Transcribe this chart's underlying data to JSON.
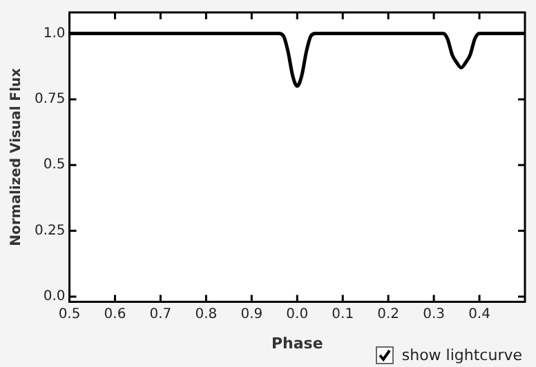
{
  "chart_data": {
    "type": "line",
    "xlabel": "Phase",
    "ylabel": "Normalized Visual Flux",
    "categories": [
      "0.5",
      null,
      null,
      null,
      null,
      null,
      null,
      null,
      null,
      null,
      "0.6",
      null,
      null,
      null,
      null,
      null,
      null,
      null,
      null,
      null,
      "0.7",
      null,
      null,
      null,
      null,
      null,
      null,
      null,
      null,
      null,
      "0.8",
      null,
      null,
      null,
      null,
      null,
      null,
      null,
      null,
      null,
      "0.9",
      null,
      null,
      null,
      null,
      null,
      null,
      null,
      null,
      null,
      "0.0",
      null,
      null,
      null,
      null,
      null,
      null,
      null,
      null,
      null,
      "0.1",
      null,
      null,
      null,
      null,
      null,
      null,
      null,
      null,
      null,
      "0.2",
      null,
      null,
      null,
      null,
      null,
      null,
      null,
      null,
      null,
      "0.3",
      null,
      null,
      null,
      null,
      null,
      null,
      null,
      null,
      null,
      "0.4",
      null,
      null,
      null,
      null,
      null,
      null,
      null,
      null,
      null,
      null
    ],
    "series": [
      {
        "color": "#000000",
        "values": [
          1.0,
          1.0,
          1.0,
          1.0,
          1.0,
          1.0,
          1.0,
          1.0,
          1.0,
          1.0,
          1.0,
          1.0,
          1.0,
          1.0,
          1.0,
          1.0,
          1.0,
          1.0,
          1.0,
          1.0,
          1.0,
          1.0,
          1.0,
          1.0,
          1.0,
          1.0,
          1.0,
          1.0,
          1.0,
          1.0,
          1.0,
          1.0,
          1.0,
          1.0,
          1.0,
          1.0,
          1.0,
          1.0,
          1.0,
          1.0,
          1.0,
          1.0,
          1.0,
          1.0,
          1.0,
          1.0,
          1.0,
          0.99,
          0.93,
          0.84,
          0.8,
          0.84,
          0.93,
          0.99,
          1.0,
          1.0,
          1.0,
          1.0,
          1.0,
          1.0,
          1.0,
          1.0,
          1.0,
          1.0,
          1.0,
          1.0,
          1.0,
          1.0,
          1.0,
          1.0,
          1.0,
          1.0,
          1.0,
          1.0,
          1.0,
          1.0,
          1.0,
          1.0,
          1.0,
          1.0,
          1.0,
          1.0,
          1.0,
          0.98,
          0.92,
          0.89,
          0.87,
          0.89,
          0.92,
          0.98,
          1.0,
          1.0,
          1.0,
          1.0,
          1.0,
          1.0,
          1.0,
          1.0,
          1.0,
          1.0,
          1.0
        ]
      }
    ],
    "ylim": [
      -0.02,
      1.08
    ],
    "yticks": [
      {
        "value": 0,
        "label": "0.0"
      },
      0.25,
      0.5,
      0.75,
      {
        "value": 1,
        "label": "1.0"
      }
    ],
    "grid": false,
    "legend": false,
    "marker": "none",
    "line_style": "solid",
    "annotations": [
      "show lightcurve"
    ]
  }
}
